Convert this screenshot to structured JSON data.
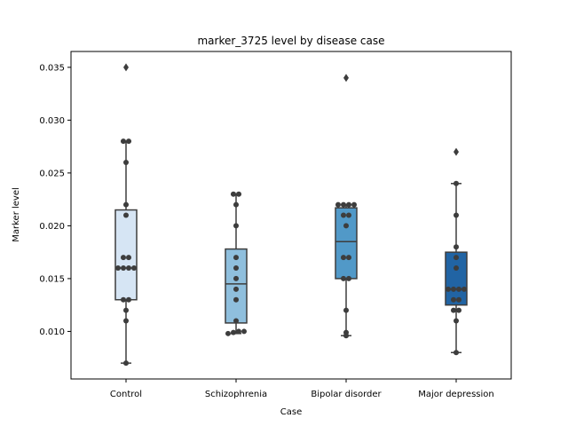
{
  "chart_data": {
    "type": "box",
    "title": "marker_3725 level by disease case",
    "xlabel": "Case",
    "ylabel": "Marker level",
    "ylim": [
      0.0055,
      0.0365
    ],
    "yticks": [
      0.01,
      0.015,
      0.02,
      0.025,
      0.03,
      0.035
    ],
    "ytick_labels": [
      "0.010",
      "0.015",
      "0.020",
      "0.025",
      "0.030",
      "0.035"
    ],
    "grid": false,
    "categories": [
      "Control",
      "Schizophrenia",
      "Bipolar disorder",
      "Major depression"
    ],
    "series": [
      {
        "color": "#d6e5f4",
        "q1": 0.013,
        "median": 0.016,
        "q3": 0.0215,
        "whisker_low": 0.007,
        "whisker_high": 0.028,
        "outliers": [
          0.035
        ],
        "points": [
          0.007,
          0.011,
          0.012,
          0.013,
          0.013,
          0.016,
          0.016,
          0.016,
          0.016,
          0.017,
          0.017,
          0.021,
          0.022,
          0.026,
          0.028,
          0.028
        ]
      },
      {
        "color": "#8fbfdd",
        "q1": 0.0108,
        "median": 0.0145,
        "q3": 0.0178,
        "whisker_low": 0.0098,
        "whisker_high": 0.023,
        "outliers": [],
        "points": [
          0.0098,
          0.0099,
          0.01,
          0.01,
          0.011,
          0.013,
          0.014,
          0.015,
          0.016,
          0.017,
          0.02,
          0.022,
          0.023,
          0.023
        ]
      },
      {
        "color": "#5199c8",
        "q1": 0.015,
        "median": 0.0185,
        "q3": 0.0217,
        "whisker_low": 0.0096,
        "whisker_high": 0.022,
        "outliers": [
          0.034
        ],
        "points": [
          0.0096,
          0.0099,
          0.012,
          0.015,
          0.015,
          0.017,
          0.017,
          0.02,
          0.021,
          0.021,
          0.022,
          0.022,
          0.022,
          0.022
        ]
      },
      {
        "color": "#2164a4",
        "q1": 0.0125,
        "median": 0.014,
        "q3": 0.0175,
        "whisker_low": 0.008,
        "whisker_high": 0.024,
        "outliers": [
          0.027
        ],
        "points": [
          0.008,
          0.011,
          0.012,
          0.012,
          0.013,
          0.013,
          0.014,
          0.014,
          0.014,
          0.014,
          0.016,
          0.017,
          0.018,
          0.021,
          0.024
        ]
      }
    ]
  }
}
